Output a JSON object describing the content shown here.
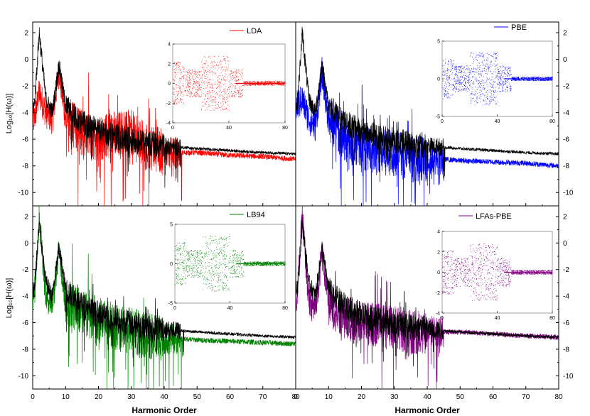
{
  "figure": {
    "xlabel": "Harmonic Order",
    "ylabel_left": "Log₁₀[H(ω)]",
    "xlim": [
      0,
      80
    ],
    "ylim": [
      -11,
      2.8
    ],
    "xticks": [
      0,
      10,
      20,
      30,
      40,
      50,
      60,
      70,
      80
    ],
    "xtick_labels": [
      "0",
      "10",
      "20",
      "30",
      "40",
      "50",
      "60",
      "70",
      "80"
    ],
    "yticks": [
      2,
      0,
      -2,
      -4,
      -6,
      -8,
      -10
    ],
    "ytick_labels": [
      "2",
      "0",
      "-2",
      "-4",
      "-6",
      "-8",
      "-10"
    ]
  },
  "chart_data": [
    {
      "type": "line",
      "panel": "top-left",
      "legend": "LDA",
      "color": "#ff0000",
      "reference_color": "#000000",
      "series": [
        {
          "name": "LDA",
          "x": [
            0.5,
            2,
            4,
            6,
            8,
            10,
            15,
            20,
            25,
            30,
            35,
            40,
            45,
            50,
            60,
            70,
            80
          ],
          "values": [
            -4.5,
            -2.5,
            -4,
            -4.5,
            -0.8,
            -4.5,
            -5.5,
            -6,
            -5.5,
            -5.5,
            -6.5,
            -7,
            -7,
            -7,
            -7.2,
            -7.3,
            -7.5
          ]
        },
        {
          "name": "reference",
          "x": [
            0.5,
            2,
            4,
            6,
            8,
            10,
            15,
            20,
            25,
            30,
            35,
            40,
            45,
            50,
            60,
            70,
            80
          ],
          "values": [
            -3.5,
            2,
            -3,
            -4,
            -0.4,
            -3.5,
            -4.8,
            -5.4,
            -5.8,
            -6.1,
            -6.3,
            -6.5,
            -6.6,
            -6.7,
            -6.85,
            -7.0,
            -7.1
          ]
        }
      ],
      "inset": {
        "xlim": [
          0,
          80
        ],
        "ylim": [
          -4,
          4
        ],
        "xticks": [
          "0",
          "40",
          "80"
        ],
        "yticks": [
          "4",
          "2",
          "0",
          "-2",
          "-4"
        ]
      }
    },
    {
      "type": "line",
      "panel": "top-right",
      "legend": "PBE",
      "color": "#0000ff",
      "reference_color": "#000000",
      "series": [
        {
          "name": "PBE",
          "x": [
            0.5,
            2,
            4,
            6,
            8,
            10,
            15,
            20,
            25,
            30,
            35,
            40,
            45,
            50,
            60,
            70,
            80
          ],
          "values": [
            -3.5,
            -3,
            -4.5,
            -5,
            -1,
            -4.5,
            -6,
            -6.5,
            -7,
            -7,
            -7.5,
            -7.5,
            -7.5,
            -7.6,
            -7.7,
            -7.8,
            -8.0
          ]
        },
        {
          "name": "reference",
          "x": [
            0.5,
            2,
            4,
            6,
            8,
            10,
            15,
            20,
            25,
            30,
            35,
            40,
            45,
            50,
            60,
            70,
            80
          ],
          "values": [
            -3.5,
            2,
            -3,
            -4,
            -0.4,
            -3.5,
            -4.8,
            -5.4,
            -5.8,
            -6.1,
            -6.3,
            -6.5,
            -6.6,
            -6.7,
            -6.85,
            -7.0,
            -7.1
          ]
        }
      ],
      "inset": {
        "xlim": [
          0,
          80
        ],
        "ylim": [
          -5,
          5
        ],
        "xticks": [
          "0",
          "40",
          "80"
        ],
        "yticks": [
          "5",
          "0",
          "-5"
        ]
      }
    },
    {
      "type": "line",
      "panel": "bottom-left",
      "legend": "LB94",
      "color": "#008000",
      "reference_color": "#000000",
      "series": [
        {
          "name": "LB94",
          "x": [
            0.5,
            2,
            4,
            6,
            8,
            10,
            15,
            20,
            25,
            30,
            35,
            40,
            45,
            50,
            60,
            70,
            80
          ],
          "values": [
            -4,
            2,
            -4,
            -4.5,
            -0.6,
            -4.5,
            -5.2,
            -5.8,
            -6.3,
            -6.6,
            -7,
            -7.2,
            -7.2,
            -7.3,
            -7.4,
            -7.5,
            -7.6
          ]
        },
        {
          "name": "reference",
          "x": [
            0.5,
            2,
            4,
            6,
            8,
            10,
            15,
            20,
            25,
            30,
            35,
            40,
            45,
            50,
            60,
            70,
            80
          ],
          "values": [
            -3.5,
            1.5,
            -3,
            -4,
            -0.4,
            -3.5,
            -4.8,
            -5.4,
            -5.8,
            -6.1,
            -6.3,
            -6.5,
            -6.6,
            -6.7,
            -6.85,
            -7.0,
            -7.1
          ]
        }
      ],
      "inset": {
        "xlim": [
          0,
          80
        ],
        "ylim": [
          -5,
          5
        ],
        "xticks": [
          "0",
          "40",
          "80"
        ],
        "yticks": [
          "5",
          "0",
          "-5"
        ]
      }
    },
    {
      "type": "line",
      "panel": "bottom-right",
      "legend": "LFAs-PBE",
      "color": "#800080",
      "reference_color": "#000000",
      "series": [
        {
          "name": "LFAs-PBE",
          "x": [
            0.5,
            2,
            4,
            6,
            8,
            10,
            15,
            20,
            25,
            30,
            35,
            40,
            45,
            50,
            60,
            70,
            80
          ],
          "values": [
            -4,
            2,
            -4.5,
            -5,
            -0.7,
            -4.5,
            -5.5,
            -6,
            -6.2,
            -6.5,
            -6.6,
            -6.6,
            -6.7,
            -6.7,
            -6.85,
            -7.0,
            -7.1
          ]
        },
        {
          "name": "reference",
          "x": [
            0.5,
            2,
            4,
            6,
            8,
            10,
            15,
            20,
            25,
            30,
            35,
            40,
            45,
            50,
            60,
            70,
            80
          ],
          "values": [
            -3.5,
            1.5,
            -3,
            -4,
            -0.4,
            -3.5,
            -4.8,
            -5.4,
            -5.8,
            -6.1,
            -6.3,
            -6.5,
            -6.6,
            -6.7,
            -6.85,
            -7.0,
            -7.1
          ]
        }
      ],
      "inset": {
        "xlim": [
          0,
          80
        ],
        "ylim": [
          -4,
          4
        ],
        "xticks": [
          "0",
          "40",
          "80"
        ],
        "yticks": [
          "4",
          "2",
          "0",
          "-2",
          "-4"
        ]
      }
    }
  ]
}
